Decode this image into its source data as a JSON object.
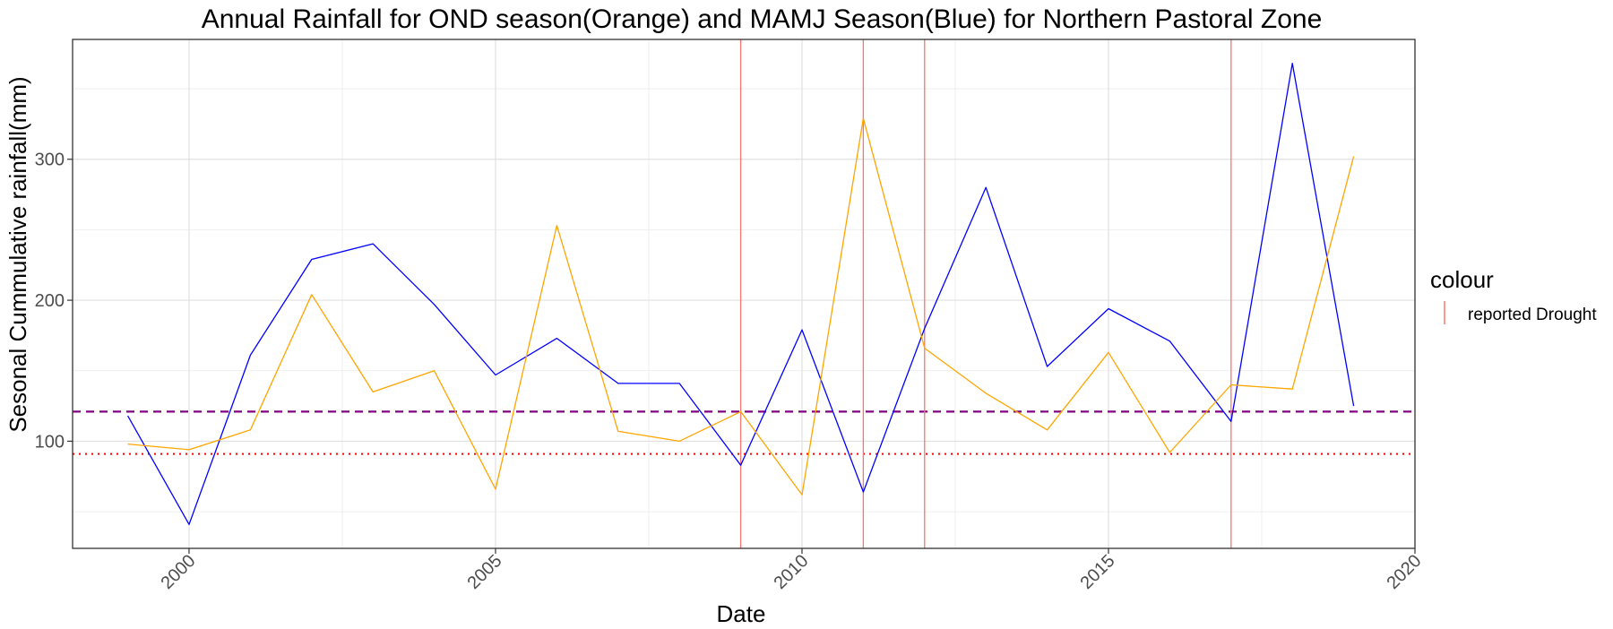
{
  "chart_data": {
    "type": "line",
    "title": "Annual Rainfall for OND season(Orange) and MAMJ Season(Blue) for Northern Pastoral Zone",
    "xlabel": "Date",
    "ylabel": "Sesonal Cummulative rainfall(mm)",
    "xlim": [
      1998.1,
      2020.0
    ],
    "ylim": [
      24,
      385
    ],
    "x_ticks": [
      2000,
      2005,
      2010,
      2015,
      2020
    ],
    "x_tick_labels": [
      "2000",
      "2005",
      "2010",
      "2015",
      "2020"
    ],
    "y_ticks": [
      100,
      200,
      300
    ],
    "y_tick_labels": [
      "100",
      "200",
      "300"
    ],
    "grid": true,
    "legend": {
      "title": "colour",
      "position": "right",
      "entries": [
        "reported Drought"
      ]
    },
    "x": [
      1999,
      2000,
      2001,
      2002,
      2003,
      2004,
      2005,
      2006,
      2007,
      2008,
      2009,
      2010,
      2011,
      2012,
      2013,
      2014,
      2015,
      2016,
      2017,
      2018,
      2019
    ],
    "series": [
      {
        "color": "#0000ff",
        "values": [
          118,
          41,
          161,
          229,
          240,
          197,
          147,
          173,
          141,
          141,
          83,
          179,
          64,
          180,
          280,
          153,
          194,
          171,
          114,
          368,
          125
        ]
      },
      {
        "color": "#ffa500",
        "values": [
          98,
          94,
          108,
          204,
          135,
          150,
          66,
          253,
          107,
          100,
          121,
          62,
          329,
          166,
          134,
          108,
          163,
          92,
          140,
          137,
          302
        ]
      }
    ],
    "reference_lines": [
      {
        "value": 121,
        "color": "#800080",
        "style": "dashed"
      },
      {
        "value": 91,
        "color": "#ff0000",
        "style": "dotted"
      }
    ],
    "drought_years": [
      2009,
      2011,
      2012,
      2017
    ],
    "drought_color": "#f8766d"
  }
}
